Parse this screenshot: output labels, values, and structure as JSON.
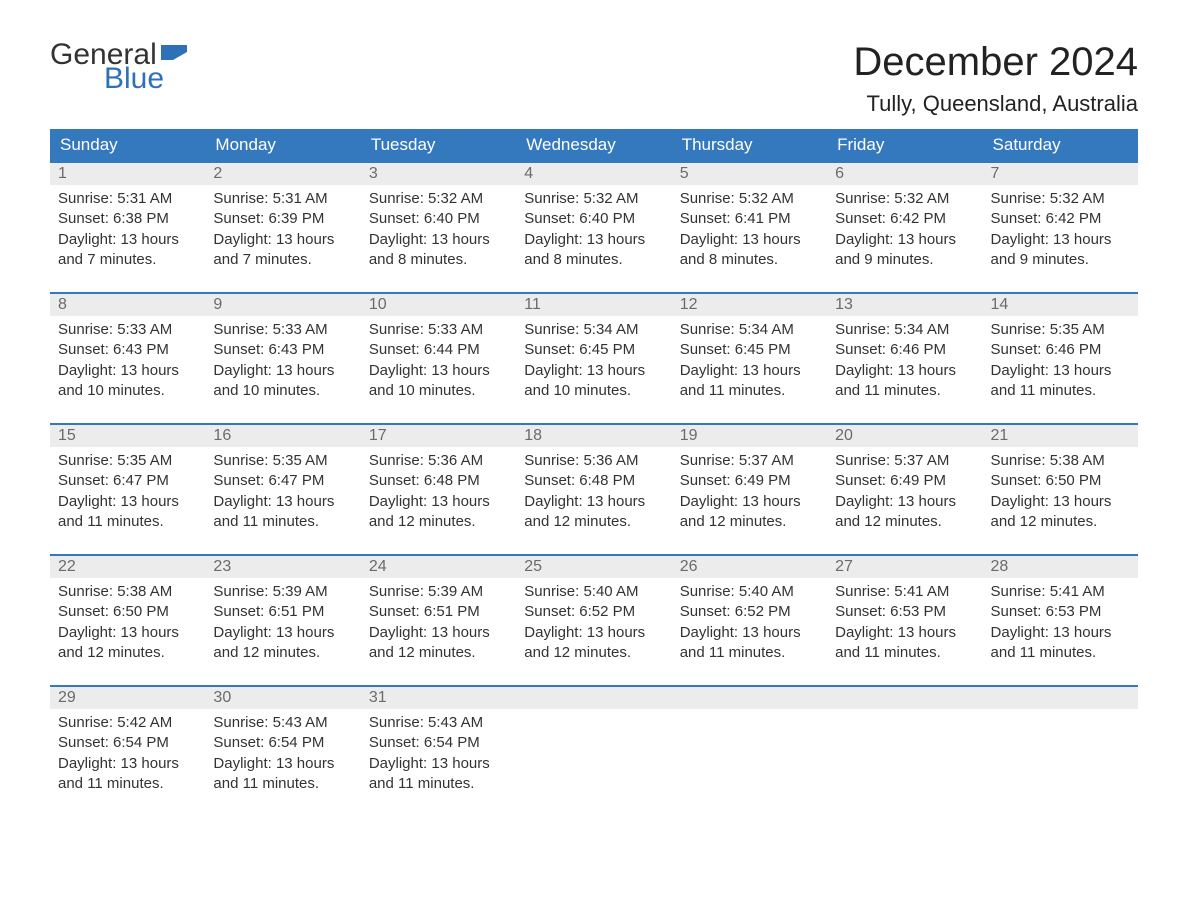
{
  "logo": {
    "word1": "General",
    "word2": "Blue",
    "word1_color": "#333333",
    "word2_color": "#2d72b8",
    "flag_color": "#2d72b8"
  },
  "title": "December 2024",
  "location": "Tully, Queensland, Australia",
  "colors": {
    "header_bg": "#3478bd",
    "header_text": "#ffffff",
    "daynum_bg": "#ececec",
    "daynum_text": "#6b6b6b",
    "row_border": "#3478bd",
    "body_text": "#333333",
    "background": "#ffffff"
  },
  "day_headers": [
    "Sunday",
    "Monday",
    "Tuesday",
    "Wednesday",
    "Thursday",
    "Friday",
    "Saturday"
  ],
  "weeks": [
    [
      {
        "n": "1",
        "sunrise": "5:31 AM",
        "sunset": "6:38 PM",
        "daylight": "13 hours and 7 minutes."
      },
      {
        "n": "2",
        "sunrise": "5:31 AM",
        "sunset": "6:39 PM",
        "daylight": "13 hours and 7 minutes."
      },
      {
        "n": "3",
        "sunrise": "5:32 AM",
        "sunset": "6:40 PM",
        "daylight": "13 hours and 8 minutes."
      },
      {
        "n": "4",
        "sunrise": "5:32 AM",
        "sunset": "6:40 PM",
        "daylight": "13 hours and 8 minutes."
      },
      {
        "n": "5",
        "sunrise": "5:32 AM",
        "sunset": "6:41 PM",
        "daylight": "13 hours and 8 minutes."
      },
      {
        "n": "6",
        "sunrise": "5:32 AM",
        "sunset": "6:42 PM",
        "daylight": "13 hours and 9 minutes."
      },
      {
        "n": "7",
        "sunrise": "5:32 AM",
        "sunset": "6:42 PM",
        "daylight": "13 hours and 9 minutes."
      }
    ],
    [
      {
        "n": "8",
        "sunrise": "5:33 AM",
        "sunset": "6:43 PM",
        "daylight": "13 hours and 10 minutes."
      },
      {
        "n": "9",
        "sunrise": "5:33 AM",
        "sunset": "6:43 PM",
        "daylight": "13 hours and 10 minutes."
      },
      {
        "n": "10",
        "sunrise": "5:33 AM",
        "sunset": "6:44 PM",
        "daylight": "13 hours and 10 minutes."
      },
      {
        "n": "11",
        "sunrise": "5:34 AM",
        "sunset": "6:45 PM",
        "daylight": "13 hours and 10 minutes."
      },
      {
        "n": "12",
        "sunrise": "5:34 AM",
        "sunset": "6:45 PM",
        "daylight": "13 hours and 11 minutes."
      },
      {
        "n": "13",
        "sunrise": "5:34 AM",
        "sunset": "6:46 PM",
        "daylight": "13 hours and 11 minutes."
      },
      {
        "n": "14",
        "sunrise": "5:35 AM",
        "sunset": "6:46 PM",
        "daylight": "13 hours and 11 minutes."
      }
    ],
    [
      {
        "n": "15",
        "sunrise": "5:35 AM",
        "sunset": "6:47 PM",
        "daylight": "13 hours and 11 minutes."
      },
      {
        "n": "16",
        "sunrise": "5:35 AM",
        "sunset": "6:47 PM",
        "daylight": "13 hours and 11 minutes."
      },
      {
        "n": "17",
        "sunrise": "5:36 AM",
        "sunset": "6:48 PM",
        "daylight": "13 hours and 12 minutes."
      },
      {
        "n": "18",
        "sunrise": "5:36 AM",
        "sunset": "6:48 PM",
        "daylight": "13 hours and 12 minutes."
      },
      {
        "n": "19",
        "sunrise": "5:37 AM",
        "sunset": "6:49 PM",
        "daylight": "13 hours and 12 minutes."
      },
      {
        "n": "20",
        "sunrise": "5:37 AM",
        "sunset": "6:49 PM",
        "daylight": "13 hours and 12 minutes."
      },
      {
        "n": "21",
        "sunrise": "5:38 AM",
        "sunset": "6:50 PM",
        "daylight": "13 hours and 12 minutes."
      }
    ],
    [
      {
        "n": "22",
        "sunrise": "5:38 AM",
        "sunset": "6:50 PM",
        "daylight": "13 hours and 12 minutes."
      },
      {
        "n": "23",
        "sunrise": "5:39 AM",
        "sunset": "6:51 PM",
        "daylight": "13 hours and 12 minutes."
      },
      {
        "n": "24",
        "sunrise": "5:39 AM",
        "sunset": "6:51 PM",
        "daylight": "13 hours and 12 minutes."
      },
      {
        "n": "25",
        "sunrise": "5:40 AM",
        "sunset": "6:52 PM",
        "daylight": "13 hours and 12 minutes."
      },
      {
        "n": "26",
        "sunrise": "5:40 AM",
        "sunset": "6:52 PM",
        "daylight": "13 hours and 11 minutes."
      },
      {
        "n": "27",
        "sunrise": "5:41 AM",
        "sunset": "6:53 PM",
        "daylight": "13 hours and 11 minutes."
      },
      {
        "n": "28",
        "sunrise": "5:41 AM",
        "sunset": "6:53 PM",
        "daylight": "13 hours and 11 minutes."
      }
    ],
    [
      {
        "n": "29",
        "sunrise": "5:42 AM",
        "sunset": "6:54 PM",
        "daylight": "13 hours and 11 minutes."
      },
      {
        "n": "30",
        "sunrise": "5:43 AM",
        "sunset": "6:54 PM",
        "daylight": "13 hours and 11 minutes."
      },
      {
        "n": "31",
        "sunrise": "5:43 AM",
        "sunset": "6:54 PM",
        "daylight": "13 hours and 11 minutes."
      },
      null,
      null,
      null,
      null
    ]
  ],
  "labels": {
    "sunrise": "Sunrise: ",
    "sunset": "Sunset: ",
    "daylight": "Daylight: "
  }
}
